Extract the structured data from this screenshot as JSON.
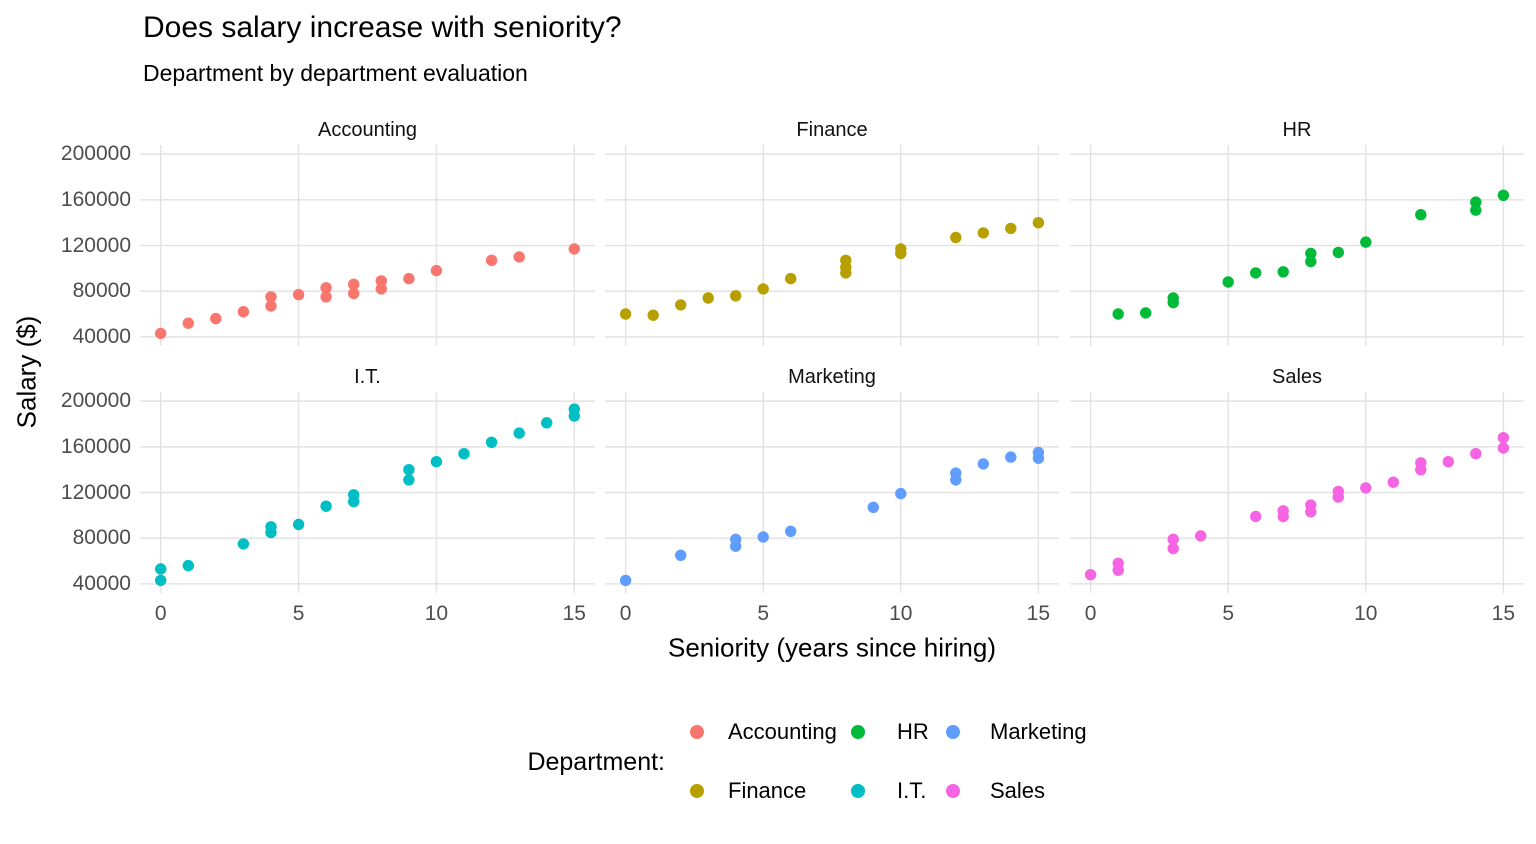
{
  "title": "Does salary increase with seniority?",
  "subtitle": "Department by department evaluation",
  "axes": {
    "x_label": "Seniority (years since hiring)",
    "y_label": "Salary ($)",
    "x_ticks": [
      0,
      5,
      10,
      15
    ],
    "y_ticks": [
      40000,
      80000,
      120000,
      160000,
      200000
    ],
    "x_range": [
      -0.75,
      15.75
    ],
    "y_range": [
      32000,
      208000
    ],
    "grid": "major-only",
    "grid_color": "#E3E3E3",
    "tick_label_color": "#4D4D4D"
  },
  "legend": {
    "title": "Department:",
    "position": "bottom",
    "entries": [
      {
        "label": "Accounting",
        "color": "#F8766D"
      },
      {
        "label": "Finance",
        "color": "#B79F00"
      },
      {
        "label": "HR",
        "color": "#00BA38"
      },
      {
        "label": "I.T.",
        "color": "#00BFC4"
      },
      {
        "label": "Marketing",
        "color": "#619CFF"
      },
      {
        "label": "Sales",
        "color": "#F564E3"
      }
    ]
  },
  "chart_data": {
    "type": "scatter",
    "facet_by": "Department",
    "xlabel": "Seniority (years since hiring)",
    "ylabel": "Salary ($)",
    "xlim": [
      -0.75,
      15.75
    ],
    "ylim": [
      32000,
      208000
    ],
    "facets": [
      {
        "name": "Accounting",
        "color": "#F8766D",
        "points": [
          [
            0,
            43000
          ],
          [
            1,
            52000
          ],
          [
            2,
            56000
          ],
          [
            3,
            62000
          ],
          [
            4,
            75000
          ],
          [
            4,
            67000
          ],
          [
            5,
            77000
          ],
          [
            6,
            83000
          ],
          [
            6,
            75000
          ],
          [
            7,
            86000
          ],
          [
            7,
            78000
          ],
          [
            8,
            89000
          ],
          [
            8,
            82000
          ],
          [
            9,
            91000
          ],
          [
            10,
            98000
          ],
          [
            12,
            107000
          ],
          [
            13,
            110000
          ],
          [
            15,
            117000
          ]
        ]
      },
      {
        "name": "Finance",
        "color": "#B79F00",
        "points": [
          [
            0,
            60000
          ],
          [
            1,
            59000
          ],
          [
            2,
            68000
          ],
          [
            3,
            74000
          ],
          [
            4,
            76000
          ],
          [
            5,
            82000
          ],
          [
            6,
            91000
          ],
          [
            8,
            107000
          ],
          [
            8,
            101000
          ],
          [
            8,
            96000
          ],
          [
            10,
            117000
          ],
          [
            10,
            113000
          ],
          [
            12,
            127000
          ],
          [
            13,
            131000
          ],
          [
            14,
            135000
          ],
          [
            15,
            140000
          ]
        ]
      },
      {
        "name": "HR",
        "color": "#00BA38",
        "points": [
          [
            1,
            60000
          ],
          [
            2,
            61000
          ],
          [
            3,
            74000
          ],
          [
            3,
            70000
          ],
          [
            5,
            88000
          ],
          [
            6,
            96000
          ],
          [
            7,
            97000
          ],
          [
            8,
            113000
          ],
          [
            8,
            106000
          ],
          [
            9,
            114000
          ],
          [
            10,
            123000
          ],
          [
            12,
            147000
          ],
          [
            14,
            158000
          ],
          [
            14,
            151000
          ],
          [
            15,
            164000
          ]
        ]
      },
      {
        "name": "I.T.",
        "color": "#00BFC4",
        "points": [
          [
            0,
            53000
          ],
          [
            0,
            43000
          ],
          [
            1,
            56000
          ],
          [
            3,
            75000
          ],
          [
            4,
            90000
          ],
          [
            4,
            85000
          ],
          [
            5,
            92000
          ],
          [
            6,
            108000
          ],
          [
            7,
            118000
          ],
          [
            7,
            112000
          ],
          [
            9,
            140000
          ],
          [
            9,
            131000
          ],
          [
            10,
            147000
          ],
          [
            11,
            154000
          ],
          [
            12,
            164000
          ],
          [
            13,
            172000
          ],
          [
            14,
            181000
          ],
          [
            15,
            193000
          ],
          [
            15,
            187000
          ]
        ]
      },
      {
        "name": "Marketing",
        "color": "#619CFF",
        "points": [
          [
            0,
            43000
          ],
          [
            2,
            65000
          ],
          [
            4,
            79000
          ],
          [
            4,
            73000
          ],
          [
            5,
            81000
          ],
          [
            6,
            86000
          ],
          [
            9,
            107000
          ],
          [
            10,
            119000
          ],
          [
            12,
            137000
          ],
          [
            12,
            131000
          ],
          [
            13,
            145000
          ],
          [
            14,
            151000
          ],
          [
            15,
            155000
          ],
          [
            15,
            150000
          ]
        ]
      },
      {
        "name": "Sales",
        "color": "#F564E3",
        "points": [
          [
            0,
            48000
          ],
          [
            1,
            58000
          ],
          [
            1,
            52000
          ],
          [
            3,
            79000
          ],
          [
            3,
            71000
          ],
          [
            4,
            82000
          ],
          [
            6,
            99000
          ],
          [
            7,
            104000
          ],
          [
            7,
            99000
          ],
          [
            8,
            109000
          ],
          [
            8,
            103000
          ],
          [
            9,
            121000
          ],
          [
            9,
            116000
          ],
          [
            10,
            124000
          ],
          [
            11,
            129000
          ],
          [
            12,
            146000
          ],
          [
            12,
            140000
          ],
          [
            13,
            147000
          ],
          [
            14,
            154000
          ],
          [
            15,
            168000
          ],
          [
            15,
            159000
          ]
        ]
      }
    ]
  }
}
